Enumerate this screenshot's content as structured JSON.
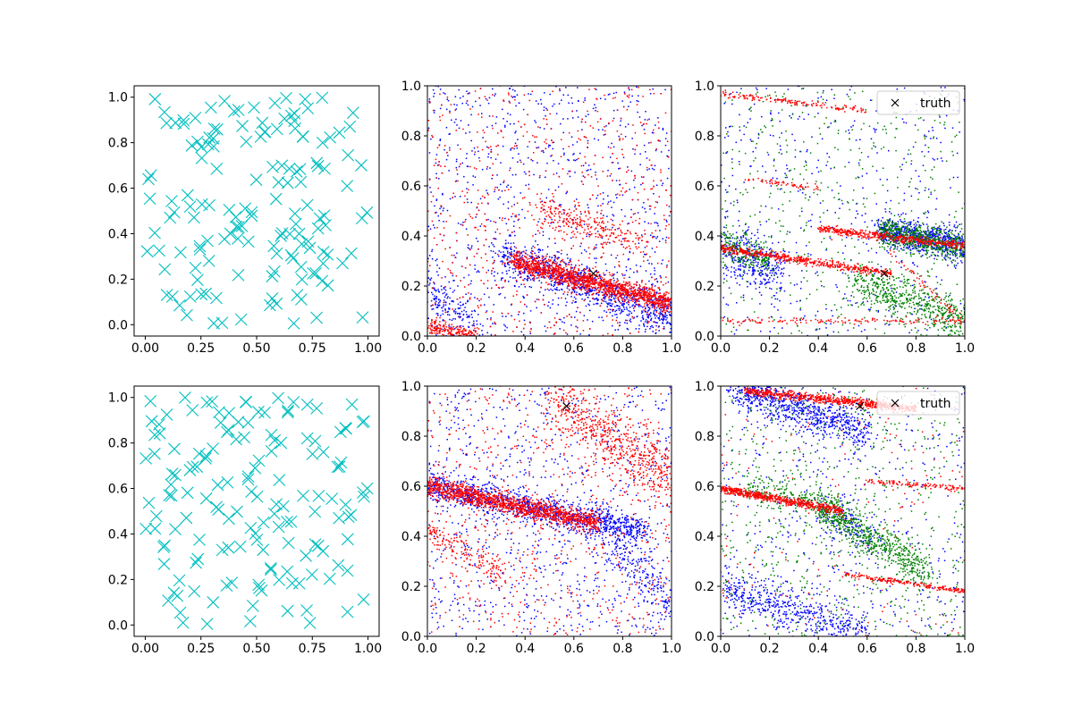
{
  "figure": {
    "background": "#ffffff"
  },
  "chart_data": [
    {
      "id": "top-left",
      "type": "scatter",
      "description_series": "random uniform samples",
      "series": [
        {
          "marker": "x",
          "color": "#00bfbf",
          "count": 150
        }
      ],
      "xlim": [
        -0.05,
        1.05
      ],
      "ylim": [
        -0.05,
        1.05
      ],
      "xticks": [
        "0.00",
        "0.25",
        "0.50",
        "0.75",
        "1.00"
      ],
      "xtick_values": [
        0,
        0.25,
        0.5,
        0.75,
        1
      ],
      "yticks": [
        "0.0",
        "0.2",
        "0.4",
        "0.6",
        "0.8",
        "1.0"
      ],
      "ytick_values": [
        0,
        0.2,
        0.4,
        0.6,
        0.8,
        1
      ]
    },
    {
      "id": "top-middle",
      "type": "scatter",
      "series": [
        {
          "color": "#0000ff",
          "bands": [
            {
              "kind": "band",
              "p0": [
                0.3,
                0.32
              ],
              "p1": [
                1.0,
                0.08
              ],
              "width": 0.04,
              "count": 900
            },
            {
              "kind": "cloud",
              "count": 1100
            },
            {
              "kind": "band",
              "p0": [
                0.0,
                0.18
              ],
              "p1": [
                0.2,
                0.05
              ],
              "width": 0.04,
              "count": 150
            }
          ]
        },
        {
          "color": "#ff0000",
          "bands": [
            {
              "kind": "band",
              "p0": [
                0.35,
                0.3
              ],
              "p1": [
                1.0,
                0.13
              ],
              "width": 0.02,
              "count": 1400
            },
            {
              "kind": "band",
              "p0": [
                0.45,
                0.5
              ],
              "p1": [
                0.9,
                0.38
              ],
              "width": 0.03,
              "count": 250
            },
            {
              "kind": "band",
              "p0": [
                0.0,
                0.04
              ],
              "p1": [
                0.2,
                0.0
              ],
              "width": 0.015,
              "count": 200
            },
            {
              "kind": "cloud",
              "count": 700
            }
          ]
        }
      ],
      "truth": {
        "x": 0.68,
        "y": 0.25,
        "marker": "x",
        "color": "#000000"
      },
      "xlim": [
        0,
        1
      ],
      "ylim": [
        0,
        1
      ],
      "xticks": [
        "0.0",
        "0.2",
        "0.4",
        "0.6",
        "0.8",
        "1.0"
      ],
      "xtick_values": [
        0,
        0.2,
        0.4,
        0.6,
        0.8,
        1
      ],
      "yticks": [
        "0.0",
        "0.2",
        "0.4",
        "0.6",
        "0.8",
        "1.0"
      ],
      "ytick_values": [
        0,
        0.2,
        0.4,
        0.6,
        0.8,
        1
      ]
    },
    {
      "id": "top-right",
      "type": "scatter",
      "series": [
        {
          "color": "#0000ff",
          "bands": [
            {
              "kind": "band",
              "p0": [
                0.65,
                0.42
              ],
              "p1": [
                1.0,
                0.36
              ],
              "width": 0.03,
              "count": 700
            },
            {
              "kind": "band",
              "p0": [
                0.0,
                0.36
              ],
              "p1": [
                0.25,
                0.25
              ],
              "width": 0.05,
              "count": 350
            },
            {
              "kind": "cloud",
              "count": 500
            }
          ]
        },
        {
          "color": "#008000",
          "bands": [
            {
              "kind": "band",
              "p0": [
                0.65,
                0.42
              ],
              "p1": [
                1.0,
                0.35
              ],
              "width": 0.03,
              "count": 600
            },
            {
              "kind": "band",
              "p0": [
                0.55,
                0.22
              ],
              "p1": [
                1.0,
                0.06
              ],
              "width": 0.04,
              "count": 550
            },
            {
              "kind": "band",
              "p0": [
                0.0,
                0.38
              ],
              "p1": [
                0.2,
                0.3
              ],
              "width": 0.03,
              "count": 200
            },
            {
              "kind": "cloud",
              "count": 500
            }
          ]
        },
        {
          "color": "#ff0000",
          "bands": [
            {
              "kind": "band",
              "p0": [
                0.0,
                0.35
              ],
              "p1": [
                0.7,
                0.25
              ],
              "width": 0.008,
              "count": 500
            },
            {
              "kind": "band",
              "p0": [
                0.4,
                0.43
              ],
              "p1": [
                1.0,
                0.36
              ],
              "width": 0.008,
              "count": 450
            },
            {
              "kind": "band",
              "p0": [
                0.0,
                0.06
              ],
              "p1": [
                1.0,
                0.06
              ],
              "width": 0.006,
              "count": 150
            },
            {
              "kind": "band",
              "p0": [
                0.0,
                0.97
              ],
              "p1": [
                0.6,
                0.9
              ],
              "width": 0.006,
              "count": 150
            },
            {
              "kind": "band",
              "p0": [
                0.1,
                0.63
              ],
              "p1": [
                0.4,
                0.59
              ],
              "width": 0.006,
              "count": 60
            },
            {
              "kind": "band",
              "p0": [
                0.7,
                0.33
              ],
              "p1": [
                1.0,
                0.05
              ],
              "width": 0.01,
              "count": 60
            }
          ]
        }
      ],
      "truth": {
        "x": 0.67,
        "y": 0.25,
        "marker": "x",
        "color": "#000000"
      },
      "legend": {
        "label": "truth",
        "position": "upper right"
      },
      "xlim": [
        0,
        1
      ],
      "ylim": [
        0,
        1
      ],
      "xticks": [
        "0.0",
        "0.2",
        "0.4",
        "0.6",
        "0.8",
        "1.0"
      ],
      "xtick_values": [
        0,
        0.2,
        0.4,
        0.6,
        0.8,
        1
      ],
      "yticks": [
        "0.0",
        "0.2",
        "0.4",
        "0.6",
        "0.8",
        "1.0"
      ],
      "ytick_values": [
        0,
        0.2,
        0.4,
        0.6,
        0.8,
        1
      ]
    },
    {
      "id": "bottom-left",
      "type": "scatter",
      "series": [
        {
          "marker": "x",
          "color": "#00bfbf",
          "count": 150
        }
      ],
      "xlim": [
        -0.05,
        1.05
      ],
      "ylim": [
        -0.05,
        1.05
      ],
      "xticks": [
        "0.00",
        "0.25",
        "0.50",
        "0.75",
        "1.00"
      ],
      "xtick_values": [
        0,
        0.25,
        0.5,
        0.75,
        1
      ],
      "yticks": [
        "0.0",
        "0.2",
        "0.4",
        "0.6",
        "0.8",
        "1.0"
      ],
      "ytick_values": [
        0,
        0.2,
        0.4,
        0.6,
        0.8,
        1
      ]
    },
    {
      "id": "bottom-middle",
      "type": "scatter",
      "series": [
        {
          "color": "#0000ff",
          "bands": [
            {
              "kind": "band",
              "p0": [
                0.0,
                0.6
              ],
              "p1": [
                0.9,
                0.42
              ],
              "width": 0.03,
              "count": 1100
            },
            {
              "kind": "band",
              "p0": [
                0.7,
                0.45
              ],
              "p1": [
                1.0,
                0.1
              ],
              "width": 0.05,
              "count": 250
            },
            {
              "kind": "cloud",
              "count": 900
            }
          ]
        },
        {
          "color": "#ff0000",
          "bands": [
            {
              "kind": "band",
              "p0": [
                0.0,
                0.6
              ],
              "p1": [
                0.7,
                0.45
              ],
              "width": 0.02,
              "count": 1300
            },
            {
              "kind": "band",
              "p0": [
                0.5,
                0.98
              ],
              "p1": [
                1.0,
                0.62
              ],
              "width": 0.06,
              "count": 650
            },
            {
              "kind": "band",
              "p0": [
                0.0,
                0.42
              ],
              "p1": [
                0.3,
                0.25
              ],
              "width": 0.03,
              "count": 150
            },
            {
              "kind": "cloud",
              "count": 700
            }
          ]
        }
      ],
      "truth": {
        "x": 0.57,
        "y": 0.92,
        "marker": "x",
        "color": "#000000"
      },
      "xlim": [
        0,
        1
      ],
      "ylim": [
        0,
        1
      ],
      "xticks": [
        "0.0",
        "0.2",
        "0.4",
        "0.6",
        "0.8",
        "1.0"
      ],
      "xtick_values": [
        0,
        0.2,
        0.4,
        0.6,
        0.8,
        1
      ],
      "yticks": [
        "0.0",
        "0.2",
        "0.4",
        "0.6",
        "0.8",
        "1.0"
      ],
      "ytick_values": [
        0,
        0.2,
        0.4,
        0.6,
        0.8,
        1
      ]
    },
    {
      "id": "bottom-right",
      "type": "scatter",
      "series": [
        {
          "color": "#0000ff",
          "bands": [
            {
              "kind": "band",
              "p0": [
                0.05,
                0.99
              ],
              "p1": [
                0.6,
                0.82
              ],
              "width": 0.04,
              "count": 800
            },
            {
              "kind": "band",
              "p0": [
                0.0,
                0.2
              ],
              "p1": [
                0.6,
                0.0
              ],
              "width": 0.04,
              "count": 550
            },
            {
              "kind": "band",
              "p0": [
                0.4,
                0.5
              ],
              "p1": [
                0.65,
                0.4
              ],
              "width": 0.04,
              "count": 150
            },
            {
              "kind": "cloud",
              "count": 500
            }
          ]
        },
        {
          "color": "#008000",
          "bands": [
            {
              "kind": "band",
              "p0": [
                0.4,
                0.52
              ],
              "p1": [
                0.85,
                0.25
              ],
              "width": 0.04,
              "count": 650
            },
            {
              "kind": "band",
              "p0": [
                0.1,
                0.6
              ],
              "p1": [
                0.5,
                0.5
              ],
              "width": 0.03,
              "count": 200
            },
            {
              "kind": "cloud",
              "count": 650
            }
          ]
        },
        {
          "color": "#ff0000",
          "bands": [
            {
              "kind": "band",
              "p0": [
                0.1,
                0.98
              ],
              "p1": [
                0.8,
                0.91
              ],
              "width": 0.008,
              "count": 700
            },
            {
              "kind": "band",
              "p0": [
                0.0,
                0.59
              ],
              "p1": [
                0.5,
                0.5
              ],
              "width": 0.008,
              "count": 600
            },
            {
              "kind": "band",
              "p0": [
                0.5,
                0.25
              ],
              "p1": [
                1.0,
                0.18
              ],
              "width": 0.005,
              "count": 200
            },
            {
              "kind": "band",
              "p0": [
                0.6,
                0.62
              ],
              "p1": [
                1.0,
                0.59
              ],
              "width": 0.005,
              "count": 120
            },
            {
              "kind": "cloud",
              "count": 150
            }
          ]
        }
      ],
      "truth": {
        "x": 0.57,
        "y": 0.92,
        "marker": "x",
        "color": "#000000"
      },
      "legend": {
        "label": "truth",
        "position": "upper right"
      },
      "xlim": [
        0,
        1
      ],
      "ylim": [
        0,
        1
      ],
      "xticks": [
        "0.0",
        "0.2",
        "0.4",
        "0.6",
        "0.8",
        "1.0"
      ],
      "xtick_values": [
        0,
        0.2,
        0.4,
        0.6,
        0.8,
        1
      ],
      "yticks": [
        "0.0",
        "0.2",
        "0.4",
        "0.6",
        "0.8",
        "1.0"
      ],
      "ytick_values": [
        0,
        0.2,
        0.4,
        0.6,
        0.8,
        1
      ]
    }
  ]
}
